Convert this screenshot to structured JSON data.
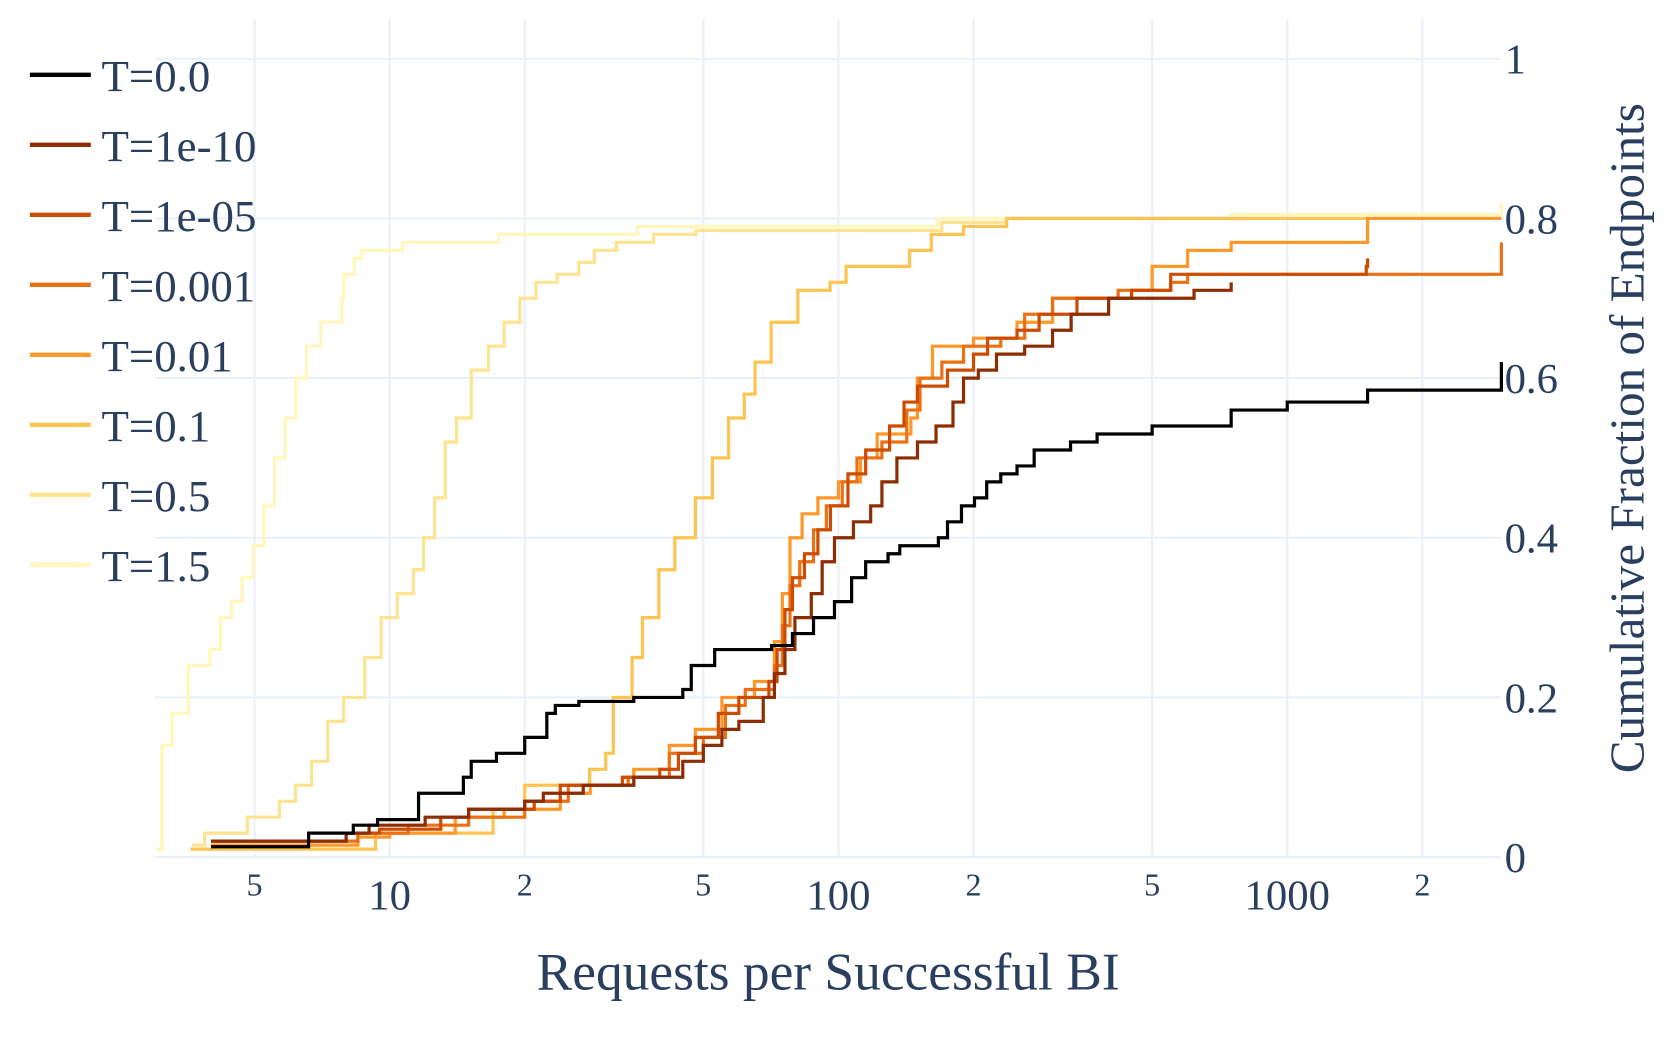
{
  "chart_data": {
    "type": "line",
    "line_shape": "step",
    "title": "",
    "xlabel": "Requests per Successful BI",
    "ylabel": "Cumulative Fraction of Endpoints",
    "x_scale": "log",
    "xlim": [
      3,
      3000
    ],
    "ylim": [
      0,
      1.02
    ],
    "y_axis_side": "right",
    "grid": true,
    "legend_position": "top-left",
    "x_ticks": [
      {
        "value": 5,
        "label": "5",
        "major": false
      },
      {
        "value": 10,
        "label": "10",
        "major": true
      },
      {
        "value": 20,
        "label": "2",
        "major": false
      },
      {
        "value": 50,
        "label": "5",
        "major": false
      },
      {
        "value": 100,
        "label": "100",
        "major": true
      },
      {
        "value": 200,
        "label": "2",
        "major": false
      },
      {
        "value": 500,
        "label": "5",
        "major": false
      },
      {
        "value": 1000,
        "label": "1000",
        "major": true
      },
      {
        "value": 2000,
        "label": "2",
        "major": false
      }
    ],
    "y_ticks": [
      {
        "value": 0,
        "label": "0"
      },
      {
        "value": 0.2,
        "label": "0.2"
      },
      {
        "value": 0.4,
        "label": "0.4"
      },
      {
        "value": 0.6,
        "label": "0.6"
      },
      {
        "value": 0.8,
        "label": "0.8"
      },
      {
        "value": 1,
        "label": "1"
      }
    ],
    "series": [
      {
        "name": "T=0.0",
        "color": "#000000",
        "points": [
          [
            4,
            0.013
          ],
          [
            6.6,
            0.03
          ],
          [
            8.3,
            0.04
          ],
          [
            9.4,
            0.047
          ],
          [
            11.6,
            0.08
          ],
          [
            14.6,
            0.1
          ],
          [
            15.2,
            0.12
          ],
          [
            17.3,
            0.13
          ],
          [
            20,
            0.15
          ],
          [
            22.4,
            0.18
          ],
          [
            23.4,
            0.19
          ],
          [
            26.4,
            0.195
          ],
          [
            35,
            0.2
          ],
          [
            45,
            0.21
          ],
          [
            47,
            0.24
          ],
          [
            53,
            0.26
          ],
          [
            71,
            0.265
          ],
          [
            79,
            0.28
          ],
          [
            88,
            0.3
          ],
          [
            98,
            0.32
          ],
          [
            107,
            0.35
          ],
          [
            115,
            0.37
          ],
          [
            129,
            0.38
          ],
          [
            137,
            0.39
          ],
          [
            167,
            0.4
          ],
          [
            175,
            0.42
          ],
          [
            188,
            0.44
          ],
          [
            201,
            0.45
          ],
          [
            214,
            0.47
          ],
          [
            230,
            0.48
          ],
          [
            250,
            0.49
          ],
          [
            273,
            0.51
          ],
          [
            329,
            0.52
          ],
          [
            377,
            0.53
          ],
          [
            500,
            0.54
          ],
          [
            750,
            0.56
          ],
          [
            1000,
            0.57
          ],
          [
            1510,
            0.585
          ],
          [
            3000,
            0.62
          ]
        ]
      },
      {
        "name": "T=1e-10",
        "color": "#8c2d04",
        "points": [
          [
            4,
            0.02
          ],
          [
            8,
            0.03
          ],
          [
            9,
            0.04
          ],
          [
            12,
            0.05
          ],
          [
            15,
            0.06
          ],
          [
            20,
            0.07
          ],
          [
            22,
            0.08
          ],
          [
            27,
            0.09
          ],
          [
            35,
            0.1
          ],
          [
            45,
            0.12
          ],
          [
            50,
            0.14
          ],
          [
            55,
            0.16
          ],
          [
            60,
            0.17
          ],
          [
            68,
            0.2
          ],
          [
            72,
            0.23
          ],
          [
            76,
            0.26
          ],
          [
            80,
            0.3
          ],
          [
            87,
            0.33
          ],
          [
            92,
            0.37
          ],
          [
            98,
            0.4
          ],
          [
            108,
            0.42
          ],
          [
            118,
            0.44
          ],
          [
            125,
            0.47
          ],
          [
            135,
            0.5
          ],
          [
            150,
            0.52
          ],
          [
            165,
            0.54
          ],
          [
            180,
            0.57
          ],
          [
            190,
            0.6
          ],
          [
            205,
            0.61
          ],
          [
            225,
            0.63
          ],
          [
            260,
            0.64
          ],
          [
            300,
            0.66
          ],
          [
            330,
            0.68
          ],
          [
            400,
            0.7
          ],
          [
            620,
            0.71
          ],
          [
            750,
            0.72
          ]
        ]
      },
      {
        "name": "T=1e-05",
        "color": "#cc4c02",
        "points": [
          [
            4,
            0.02
          ],
          [
            8,
            0.03
          ],
          [
            9.5,
            0.035
          ],
          [
            13,
            0.05
          ],
          [
            15,
            0.06
          ],
          [
            21,
            0.07
          ],
          [
            24,
            0.09
          ],
          [
            33,
            0.1
          ],
          [
            40,
            0.11
          ],
          [
            44,
            0.13
          ],
          [
            48,
            0.15
          ],
          [
            54,
            0.18
          ],
          [
            60,
            0.2
          ],
          [
            70,
            0.22
          ],
          [
            73,
            0.26
          ],
          [
            76,
            0.31
          ],
          [
            79,
            0.35
          ],
          [
            84,
            0.38
          ],
          [
            90,
            0.41
          ],
          [
            96,
            0.44
          ],
          [
            105,
            0.48
          ],
          [
            115,
            0.51
          ],
          [
            130,
            0.54
          ],
          [
            140,
            0.57
          ],
          [
            150,
            0.59
          ],
          [
            175,
            0.61
          ],
          [
            200,
            0.63
          ],
          [
            215,
            0.65
          ],
          [
            250,
            0.66
          ],
          [
            280,
            0.68
          ],
          [
            340,
            0.7
          ],
          [
            450,
            0.71
          ],
          [
            550,
            0.73
          ],
          [
            1500,
            0.74
          ],
          [
            1510,
            0.75
          ]
        ]
      },
      {
        "name": "T=0.001",
        "color": "#ec7014",
        "points": [
          [
            4,
            0.02
          ],
          [
            8.5,
            0.03
          ],
          [
            11,
            0.04
          ],
          [
            15,
            0.05
          ],
          [
            20,
            0.07
          ],
          [
            25,
            0.09
          ],
          [
            34,
            0.1
          ],
          [
            42,
            0.13
          ],
          [
            50,
            0.15
          ],
          [
            56,
            0.19
          ],
          [
            62,
            0.21
          ],
          [
            72,
            0.24
          ],
          [
            75,
            0.29
          ],
          [
            78,
            0.34
          ],
          [
            82,
            0.37
          ],
          [
            88,
            0.41
          ],
          [
            94,
            0.44
          ],
          [
            102,
            0.47
          ],
          [
            110,
            0.5
          ],
          [
            125,
            0.52
          ],
          [
            142,
            0.56
          ],
          [
            152,
            0.6
          ],
          [
            170,
            0.62
          ],
          [
            190,
            0.64
          ],
          [
            230,
            0.65
          ],
          [
            260,
            0.68
          ],
          [
            300,
            0.7
          ],
          [
            420,
            0.71
          ],
          [
            550,
            0.72
          ],
          [
            600,
            0.73
          ],
          [
            3000,
            0.77
          ]
        ]
      },
      {
        "name": "T=0.01",
        "color": "#fe9929",
        "points": [
          [
            4,
            0.015
          ],
          [
            8.5,
            0.025
          ],
          [
            10,
            0.03
          ],
          [
            14,
            0.05
          ],
          [
            18,
            0.06
          ],
          [
            24,
            0.08
          ],
          [
            28,
            0.09
          ],
          [
            35,
            0.11
          ],
          [
            42,
            0.14
          ],
          [
            48,
            0.16
          ],
          [
            55,
            0.2
          ],
          [
            65,
            0.22
          ],
          [
            72,
            0.27
          ],
          [
            75,
            0.33
          ],
          [
            78,
            0.4
          ],
          [
            83,
            0.43
          ],
          [
            90,
            0.45
          ],
          [
            100,
            0.47
          ],
          [
            112,
            0.5
          ],
          [
            122,
            0.53
          ],
          [
            145,
            0.55
          ],
          [
            150,
            0.6
          ],
          [
            162,
            0.64
          ],
          [
            200,
            0.65
          ],
          [
            250,
            0.67
          ],
          [
            300,
            0.7
          ],
          [
            450,
            0.71
          ],
          [
            500,
            0.74
          ],
          [
            600,
            0.76
          ],
          [
            750,
            0.77
          ],
          [
            1510,
            0.8
          ],
          [
            3000,
            0.8
          ]
        ]
      },
      {
        "name": "T=0.1",
        "color": "#fec44f",
        "points": [
          [
            3.6,
            0.01
          ],
          [
            9.3,
            0.03
          ],
          [
            17,
            0.06
          ],
          [
            20,
            0.09
          ],
          [
            27.9,
            0.11
          ],
          [
            30.3,
            0.13
          ],
          [
            31.5,
            0.2
          ],
          [
            34.7,
            0.25
          ],
          [
            36.6,
            0.3
          ],
          [
            39.8,
            0.36
          ],
          [
            43.2,
            0.4
          ],
          [
            48,
            0.45
          ],
          [
            52.4,
            0.5
          ],
          [
            56.9,
            0.55
          ],
          [
            61.7,
            0.58
          ],
          [
            65.2,
            0.62
          ],
          [
            70.8,
            0.67
          ],
          [
            81.2,
            0.71
          ],
          [
            95.8,
            0.72
          ],
          [
            104,
            0.74
          ],
          [
            144,
            0.76
          ],
          [
            161,
            0.78
          ],
          [
            190,
            0.79
          ],
          [
            237,
            0.8
          ],
          [
            3000,
            0.8
          ]
        ]
      },
      {
        "name": "T=0.5",
        "color": "#fee391",
        "points": [
          [
            3.63,
            0.015
          ],
          [
            3.87,
            0.03
          ],
          [
            4.82,
            0.05
          ],
          [
            5.68,
            0.07
          ],
          [
            6.17,
            0.09
          ],
          [
            6.7,
            0.12
          ],
          [
            7.28,
            0.17
          ],
          [
            7.9,
            0.2
          ],
          [
            8.8,
            0.25
          ],
          [
            9.57,
            0.3
          ],
          [
            10.4,
            0.33
          ],
          [
            11.3,
            0.36
          ],
          [
            11.9,
            0.4
          ],
          [
            12.6,
            0.45
          ],
          [
            13.3,
            0.52
          ],
          [
            14.1,
            0.55
          ],
          [
            15.2,
            0.61
          ],
          [
            16.6,
            0.64
          ],
          [
            18,
            0.67
          ],
          [
            19.5,
            0.7
          ],
          [
            21.2,
            0.72
          ],
          [
            23.6,
            0.73
          ],
          [
            26.4,
            0.745
          ],
          [
            28.6,
            0.76
          ],
          [
            32,
            0.77
          ],
          [
            38.7,
            0.78
          ],
          [
            48.2,
            0.785
          ],
          [
            170,
            0.795
          ],
          [
            237,
            0.8
          ],
          [
            3000,
            0.8
          ]
        ]
      },
      {
        "name": "T=1.5",
        "color": "#fff7bc",
        "points": [
          [
            3.03,
            0.01
          ],
          [
            3.11,
            0.14
          ],
          [
            3.28,
            0.18
          ],
          [
            3.56,
            0.24
          ],
          [
            3.98,
            0.26
          ],
          [
            4.2,
            0.3
          ],
          [
            4.44,
            0.32
          ],
          [
            4.69,
            0.35
          ],
          [
            4.96,
            0.39
          ],
          [
            5.24,
            0.44
          ],
          [
            5.54,
            0.5
          ],
          [
            5.85,
            0.55
          ],
          [
            6.18,
            0.6
          ],
          [
            6.53,
            0.64
          ],
          [
            7.02,
            0.67
          ],
          [
            7.82,
            0.7
          ],
          [
            7.9,
            0.73
          ],
          [
            8.34,
            0.75
          ],
          [
            8.67,
            0.76
          ],
          [
            10.7,
            0.77
          ],
          [
            17.5,
            0.78
          ],
          [
            35.7,
            0.79
          ],
          [
            166,
            0.8
          ],
          [
            748,
            0.805
          ],
          [
            3000,
            0.82
          ]
        ]
      }
    ]
  }
}
